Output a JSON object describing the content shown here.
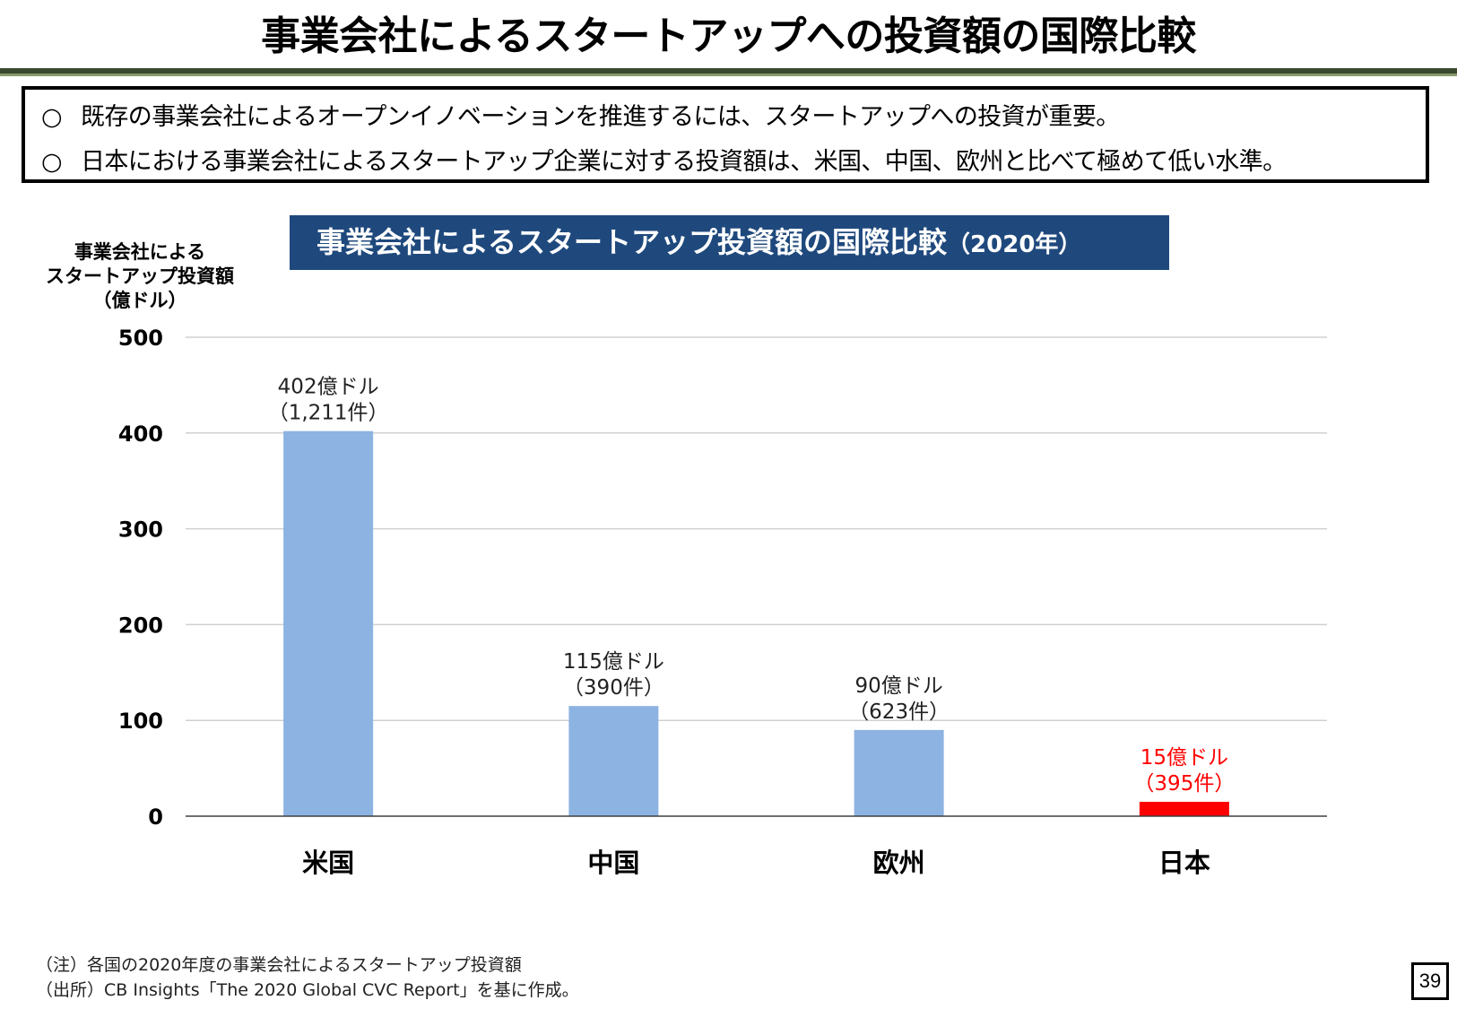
{
  "slide": {
    "title": "事業会社によるスタートアップへの投資額の国際比較",
    "page_number": "39"
  },
  "summary": {
    "bullets": [
      {
        "mark": "○",
        "text": "既存の事業会社によるオープンイノベーションを推進するには、スタートアップへの投資が重要。"
      },
      {
        "mark": "○",
        "text": "日本における事業会社によるスタートアップ企業に対する投資額は、米国、中国、欧州と比べて極めて低い水準。"
      }
    ]
  },
  "chart_data": {
    "type": "bar",
    "title": "事業会社によるスタートアップ投資額の国際比較",
    "title_year": "（2020年）",
    "ylabel": "事業会社による\nスタートアップ投資額\n（億ドル）",
    "xlabel": "",
    "ylim": [
      0,
      500
    ],
    "yticks": [
      0,
      100,
      200,
      300,
      400,
      500
    ],
    "grid": true,
    "categories": [
      "米国",
      "中国",
      "欧州",
      "日本"
    ],
    "values": [
      402,
      115,
      90,
      15
    ],
    "bar_colors": [
      "#8db3e2",
      "#8db3e2",
      "#8db3e2",
      "#ff0000"
    ],
    "label_colors": [
      "#222222",
      "#222222",
      "#222222",
      "#ff0000"
    ],
    "data_labels": [
      {
        "amount": "402億ドル",
        "count": "（1,211件）"
      },
      {
        "amount": "115億ドル",
        "count": "（390件）"
      },
      {
        "amount": "90億ドル",
        "count": "（623件）"
      },
      {
        "amount": "15億ドル",
        "count": "（395件）"
      }
    ]
  },
  "notes": {
    "note": "（注）各国の2020年度の事業会社によるスタートアップ投資額",
    "source": "（出所）CB Insights「The 2020 Global CVC Report」を基に作成。"
  }
}
